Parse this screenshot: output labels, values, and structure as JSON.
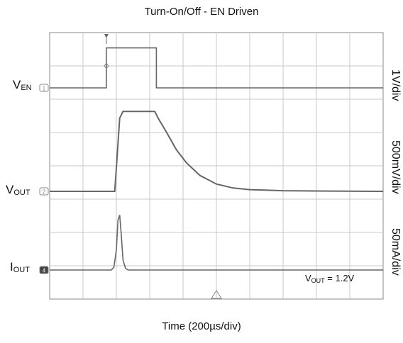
{
  "chart_data": {
    "type": "line",
    "title": "Turn-On/Off - EN Driven",
    "xlabel": "Time (200µs/div)",
    "grid": true,
    "divisions": {
      "x": 10,
      "y": 8
    },
    "xlim": [
      0,
      2000
    ],
    "x_unit": "µs",
    "series": [
      {
        "label_main": "V",
        "label_sub": "EN",
        "marker": "1",
        "scale": "1V/div",
        "x": [
          0,
          340,
          340,
          640,
          640,
          2000
        ],
        "y_div": [
          0,
          0,
          1.2,
          1.2,
          0,
          0
        ]
      },
      {
        "label_main": "V",
        "label_sub": "OUT",
        "marker": "2",
        "scale": "500mV/div",
        "x": [
          0,
          390,
          400,
          420,
          440,
          455,
          630,
          650,
          700,
          760,
          820,
          900,
          1000,
          1100,
          1200,
          1400,
          1600,
          2000
        ],
        "y_div": [
          0,
          0,
          0.7,
          2.2,
          2.4,
          2.4,
          2.4,
          2.2,
          1.78,
          1.25,
          0.86,
          0.48,
          0.22,
          0.1,
          0.05,
          0.02,
          0.01,
          0.0
        ]
      },
      {
        "label_main": "I",
        "label_sub": "OUT",
        "marker": "4",
        "scale": "50mA/div",
        "x": [
          0,
          370,
          385,
          400,
          410,
          420,
          430,
          440,
          455,
          470,
          2000
        ],
        "y_div": [
          0,
          0,
          0.08,
          0.6,
          1.5,
          1.65,
          1.0,
          0.3,
          0.05,
          0,
          0
        ]
      }
    ],
    "annotation": {
      "main": "V",
      "sub": "OUT",
      "text": " = 1.2V"
    }
  }
}
